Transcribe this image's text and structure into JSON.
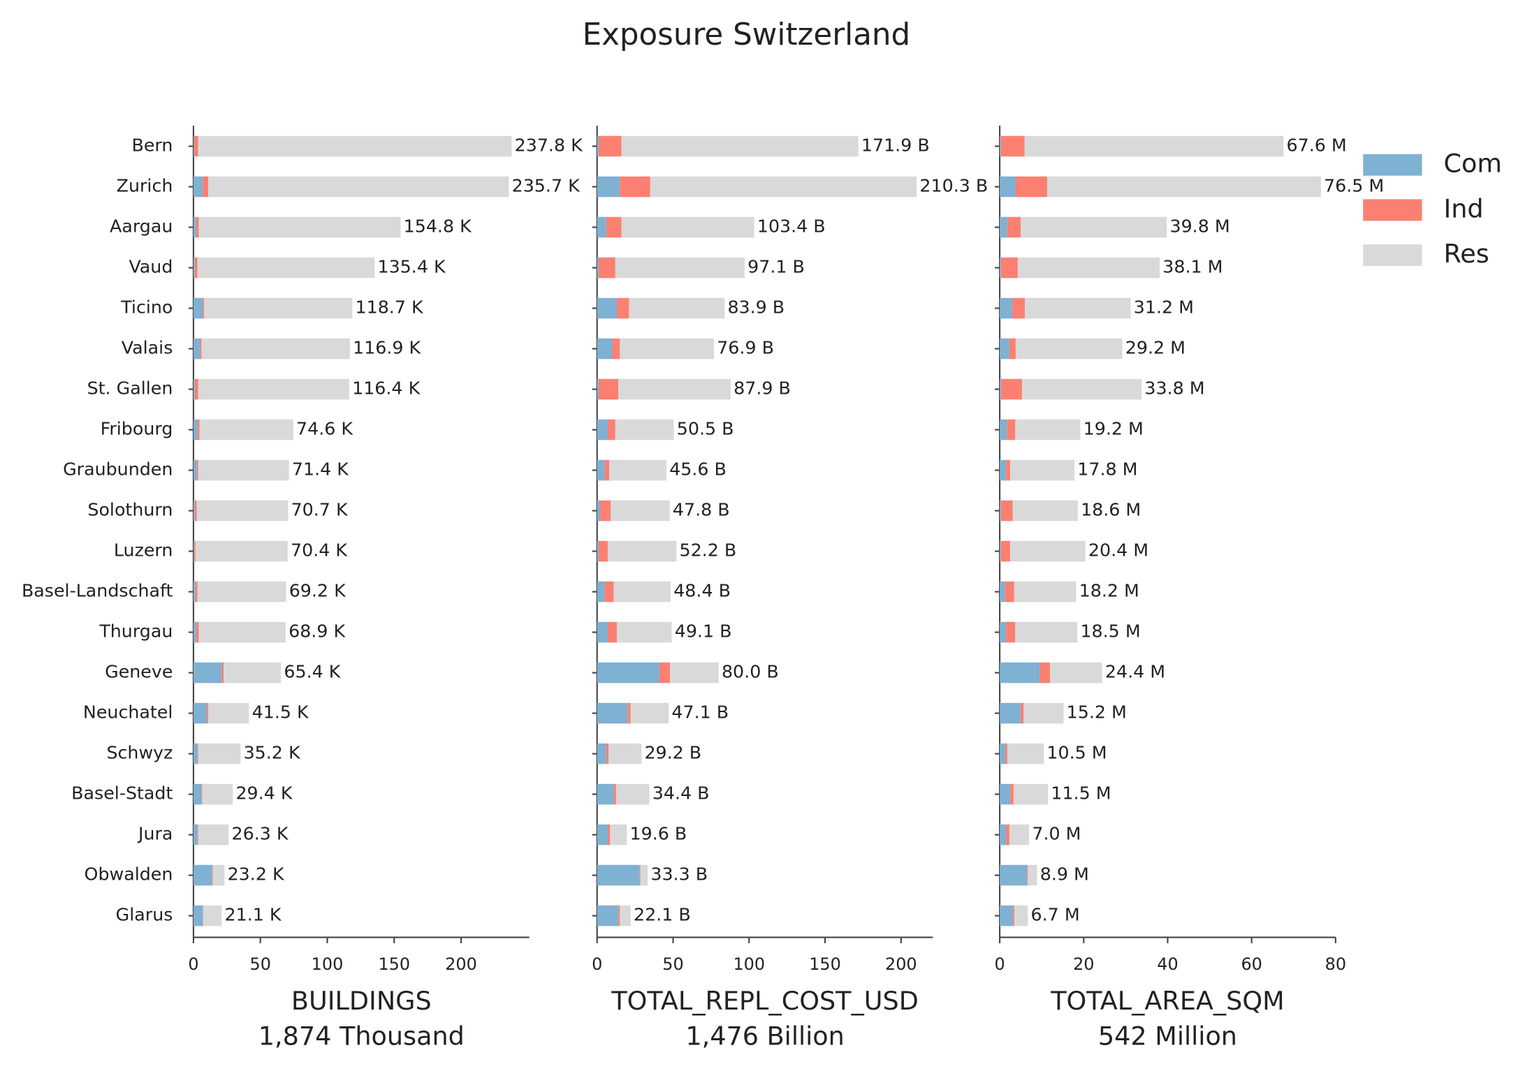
{
  "title": "Exposure Switzerland",
  "chart_data": [
    {
      "type": "barh",
      "xlabel": "BUILDINGS",
      "summary": "1,874 Thousand",
      "categories": [
        "Bern",
        "Zurich",
        "Aargau",
        "Vaud",
        "Ticino",
        "Valais",
        "St. Gallen",
        "Fribourg",
        "Graubunden",
        "Solothurn",
        "Luzern",
        "Basel-Landschaft",
        "Thurgau",
        "Geneve",
        "Neuchatel",
        "Schwyz",
        "Basel-Stadt",
        "Jura",
        "Obwalden",
        "Glarus"
      ],
      "series": [
        {
          "color": "#7fb1d3",
          "values": [
            0.5,
            7,
            2,
            1,
            7,
            5,
            1,
            3,
            2.5,
            1,
            0.5,
            1.5,
            2,
            21,
            10,
            3,
            6,
            3,
            14,
            7
          ]
        },
        {
          "color": "#fb8072",
          "values": [
            3,
            4,
            2,
            2,
            1,
            1,
            2.5,
            1.5,
            1,
            1.5,
            1,
            1.5,
            2,
            1.5,
            1,
            0.5,
            0.5,
            0.5,
            0.5,
            0.3
          ]
        },
        {
          "color": "#d9d9d9",
          "values": [
            234.3,
            224.7,
            150.8,
            132.4,
            110.7,
            110.9,
            112.9,
            70.1,
            67.9,
            68.2,
            68.9,
            66.2,
            64.9,
            42.9,
            30.5,
            31.7,
            22.9,
            22.8,
            8.7,
            13.8
          ]
        }
      ],
      "totals": [
        237.8,
        235.7,
        154.8,
        135.4,
        118.7,
        116.9,
        116.4,
        74.6,
        71.4,
        70.7,
        70.4,
        69.2,
        68.9,
        65.4,
        41.5,
        35.2,
        29.4,
        26.3,
        23.2,
        21.1
      ],
      "total_labels": [
        "237.8 K",
        "235.7 K",
        "154.8 K",
        "135.4 K",
        "118.7 K",
        "116.9 K",
        "116.4 K",
        "74.6 K",
        "71.4 K",
        "70.7 K",
        "70.4 K",
        "69.2 K",
        "68.9 K",
        "65.4 K",
        "41.5 K",
        "35.2 K",
        "29.4 K",
        "26.3 K",
        "23.2 K",
        "21.1 K"
      ],
      "xlim": [
        0,
        251
      ],
      "xticks": [
        0,
        50,
        100,
        150,
        200
      ]
    },
    {
      "type": "barh",
      "xlabel": "TOTAL_REPL_COST_USD",
      "summary": "1,476 Billion",
      "series": [
        {
          "color": "#7fb1d3",
          "values": [
            1,
            15,
            6,
            1,
            13,
            10,
            1,
            7,
            5,
            2,
            1,
            5,
            7,
            41,
            20,
            6,
            11,
            7,
            28,
            14
          ]
        },
        {
          "color": "#fb8072",
          "values": [
            15,
            20,
            10,
            11,
            8,
            5,
            13,
            5,
            3,
            7,
            6,
            6,
            6,
            7,
            2,
            1.5,
            1.5,
            1.5,
            0.5,
            1
          ]
        },
        {
          "color": "#d9d9d9",
          "values": [
            155.9,
            175.3,
            87.4,
            85.1,
            62.9,
            61.9,
            73.9,
            38.5,
            37.6,
            38.8,
            45.2,
            37.4,
            36.1,
            32.0,
            25.1,
            21.7,
            21.9,
            11.1,
            4.8,
            7.1
          ]
        }
      ],
      "totals": [
        171.9,
        210.3,
        103.4,
        97.1,
        83.9,
        76.9,
        87.9,
        50.5,
        45.6,
        47.8,
        52.2,
        48.4,
        49.1,
        80.0,
        47.1,
        29.2,
        34.4,
        19.6,
        33.3,
        22.1
      ],
      "total_labels": [
        "171.9 B",
        "210.3 B",
        "103.4 B",
        "97.1 B",
        "83.9 B",
        "76.9 B",
        "87.9 B",
        "50.5 B",
        "45.6 B",
        "47.8 B",
        "52.2 B",
        "48.4 B",
        "49.1 B",
        "80.0 B",
        "47.1 B",
        "29.2 B",
        "34.4 B",
        "19.6 B",
        "33.3 B",
        "22.1 B"
      ],
      "xlim": [
        0,
        221
      ],
      "xticks": [
        0,
        50,
        100,
        150,
        200
      ]
    },
    {
      "type": "barh",
      "xlabel": "TOTAL_AREA_SQM",
      "summary": "542 Million",
      "series": [
        {
          "name": "Com",
          "color": "#7fb1d3",
          "values": [
            0.3,
            3.8,
            1.8,
            0.3,
            3,
            2.3,
            0.3,
            1.7,
            1.5,
            0.3,
            0.3,
            1.2,
            1.5,
            9.5,
            5,
            1.3,
            2.5,
            1.5,
            6.5,
            3.2
          ]
        },
        {
          "name": "Ind",
          "color": "#fb8072",
          "values": [
            5.6,
            7.5,
            3.2,
            4,
            3,
            1.5,
            5,
            2,
            1,
            2.8,
            2.2,
            2.2,
            2.2,
            2.5,
            0.7,
            0.5,
            0.8,
            0.8,
            0.2,
            0.3
          ]
        },
        {
          "name": "Res",
          "color": "#d9d9d9",
          "values": [
            61.7,
            65.2,
            34.8,
            33.8,
            25.2,
            25.4,
            28.5,
            15.5,
            15.3,
            15.5,
            17.9,
            14.8,
            14.8,
            12.4,
            9.5,
            8.7,
            8.2,
            4.7,
            2.2,
            3.2
          ]
        }
      ],
      "totals": [
        67.6,
        76.5,
        39.8,
        38.1,
        31.2,
        29.2,
        33.8,
        19.2,
        17.8,
        18.6,
        20.4,
        18.2,
        18.5,
        24.4,
        15.2,
        10.5,
        11.5,
        7.0,
        8.9,
        6.7
      ],
      "total_labels": [
        "67.6 M",
        "76.5 M",
        "39.8 M",
        "38.1 M",
        "31.2 M",
        "29.2 M",
        "33.8 M",
        "19.2 M",
        "17.8 M",
        "18.6 M",
        "20.4 M",
        "18.2 M",
        "18.5 M",
        "24.4 M",
        "15.2 M",
        "10.5 M",
        "11.5 M",
        "7.0 M",
        "8.9 M",
        "6.7 M"
      ],
      "xlim": [
        0,
        80
      ],
      "xticks": [
        0,
        20,
        40,
        60,
        80
      ],
      "legend": "upper right"
    }
  ]
}
